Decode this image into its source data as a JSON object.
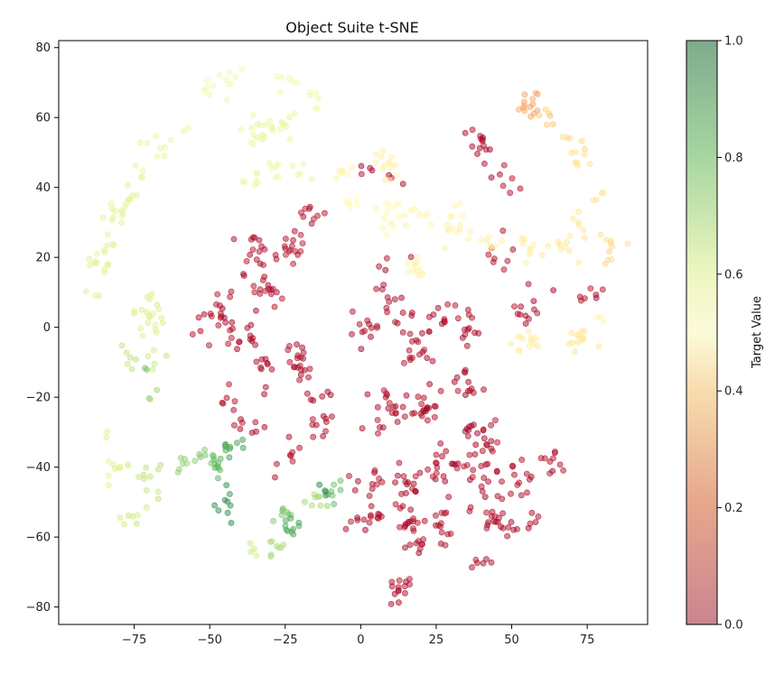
{
  "chart_data": {
    "type": "scatter",
    "title": "Object Suite t-SNE",
    "xlabel": "",
    "ylabel": "",
    "xlim": [
      -100,
      95
    ],
    "ylim": [
      -85,
      82
    ],
    "x_ticks": [
      -75,
      -50,
      -25,
      0,
      25,
      50,
      75
    ],
    "x_tick_labels": [
      "−75",
      "−50",
      "−25",
      "0",
      "25",
      "50",
      "75"
    ],
    "y_ticks": [
      -80,
      -60,
      -40,
      -20,
      0,
      20,
      40,
      60,
      80
    ],
    "y_tick_labels": [
      "−80",
      "−60",
      "−40",
      "−20",
      "0",
      "20",
      "40",
      "60",
      "80"
    ],
    "grid": false,
    "colormap": "RdYlGn",
    "colormap_colors": [
      "#a50026",
      "#f46d43",
      "#fee08b",
      "#ffffbf",
      "#d9ef8b",
      "#66bd63",
      "#006837"
    ],
    "point_alpha": 0.5,
    "colorbar": {
      "label": "Target Value",
      "range": [
        0,
        1
      ],
      "ticks": [
        0.0,
        0.2,
        0.4,
        0.6,
        0.8,
        1.0
      ],
      "tick_labels": [
        "0.0",
        "0.2",
        "0.4",
        "0.6",
        "0.8",
        "1.0"
      ]
    },
    "clusters": [
      {
        "cx": -88,
        "cy": 10,
        "sx": 1.5,
        "sy": 1,
        "n": 3,
        "v": 0.62
      },
      {
        "cx": -86,
        "cy": 19,
        "sx": 2,
        "sy": 2,
        "n": 10,
        "v": 0.62
      },
      {
        "cx": -84,
        "cy": 23,
        "sx": 1.5,
        "sy": 1.5,
        "n": 6,
        "v": 0.63
      },
      {
        "cx": -81,
        "cy": 32,
        "sx": 2,
        "sy": 2,
        "n": 10,
        "v": 0.62
      },
      {
        "cx": -78,
        "cy": 37,
        "sx": 2,
        "sy": 2,
        "n": 8,
        "v": 0.62
      },
      {
        "cx": -73,
        "cy": 45,
        "sx": 1.5,
        "sy": 1.5,
        "n": 4,
        "v": 0.6
      },
      {
        "cx": -66,
        "cy": 52,
        "sx": 2,
        "sy": 2,
        "n": 8,
        "v": 0.59
      },
      {
        "cx": -58,
        "cy": 57,
        "sx": 1,
        "sy": 1,
        "n": 2,
        "v": 0.58
      },
      {
        "cx": -50,
        "cy": 67,
        "sx": 2.5,
        "sy": 2,
        "n": 6,
        "v": 0.55
      },
      {
        "cx": -43,
        "cy": 71,
        "sx": 2,
        "sy": 2,
        "n": 7,
        "v": 0.55
      },
      {
        "cx": -25,
        "cy": 71,
        "sx": 2,
        "sy": 2,
        "n": 6,
        "v": 0.55
      },
      {
        "cx": -15,
        "cy": 66,
        "sx": 2.5,
        "sy": 3,
        "n": 6,
        "v": 0.56
      },
      {
        "cx": -32,
        "cy": 57,
        "sx": 3,
        "sy": 2,
        "n": 15,
        "v": 0.59
      },
      {
        "cx": -26,
        "cy": 58,
        "sx": 2,
        "sy": 2,
        "n": 8,
        "v": 0.59
      },
      {
        "cx": -38,
        "cy": 54,
        "sx": 1.5,
        "sy": 1.5,
        "n": 3,
        "v": 0.58
      },
      {
        "cx": -37,
        "cy": 42,
        "sx": 2,
        "sy": 1.5,
        "n": 6,
        "v": 0.58
      },
      {
        "cx": -29,
        "cy": 45,
        "sx": 2,
        "sy": 1.5,
        "n": 8,
        "v": 0.58
      },
      {
        "cx": -20,
        "cy": 44,
        "sx": 1.5,
        "sy": 1,
        "n": 4,
        "v": 0.57
      },
      {
        "cx": -80,
        "cy": -40,
        "sx": 3,
        "sy": 2,
        "n": 10,
        "v": 0.63
      },
      {
        "cx": -83,
        "cy": -30,
        "sx": 1,
        "sy": 1,
        "n": 2,
        "v": 0.64
      },
      {
        "cx": -70,
        "cy": -42,
        "sx": 2.5,
        "sy": 2.5,
        "n": 10,
        "v": 0.7
      },
      {
        "cx": -76,
        "cy": -53,
        "sx": 3,
        "sy": 3,
        "n": 7,
        "v": 0.68
      },
      {
        "cx": -58,
        "cy": -39,
        "sx": 2,
        "sy": 1.5,
        "n": 7,
        "v": 0.76
      },
      {
        "cx": -51,
        "cy": -37,
        "sx": 2,
        "sy": 2,
        "n": 7,
        "v": 0.8
      },
      {
        "cx": -42,
        "cy": -34,
        "sx": 2,
        "sy": 1.5,
        "n": 10,
        "v": 0.88
      },
      {
        "cx": -46,
        "cy": -40,
        "sx": 2,
        "sy": 2,
        "n": 9,
        "v": 0.85
      },
      {
        "cx": -45,
        "cy": -51,
        "sx": 1.5,
        "sy": 2,
        "n": 9,
        "v": 0.92
      },
      {
        "cx": -26,
        "cy": -52,
        "sx": 2,
        "sy": 1.5,
        "n": 8,
        "v": 0.8
      },
      {
        "cx": -22,
        "cy": -57,
        "sx": 2,
        "sy": 2,
        "n": 10,
        "v": 0.87
      },
      {
        "cx": -28,
        "cy": -63,
        "sx": 2,
        "sy": 2,
        "n": 8,
        "v": 0.73
      },
      {
        "cx": -35,
        "cy": -64,
        "sx": 1.5,
        "sy": 1,
        "n": 4,
        "v": 0.68
      },
      {
        "cx": -15,
        "cy": -50,
        "sx": 2,
        "sy": 1.5,
        "n": 8,
        "v": 0.74
      },
      {
        "cx": -8,
        "cy": -47,
        "sx": 1.5,
        "sy": 1.5,
        "n": 7,
        "v": 0.83
      },
      {
        "cx": -12,
        "cy": -47,
        "sx": 1.5,
        "sy": 2,
        "n": 4,
        "v": 0.92
      },
      {
        "cx": -70,
        "cy": 3,
        "sx": 3,
        "sy": 4,
        "n": 20,
        "v": 0.65
      },
      {
        "cx": -76,
        "cy": -8,
        "sx": 2,
        "sy": 3,
        "n": 6,
        "v": 0.7
      },
      {
        "cx": -68,
        "cy": -9,
        "sx": 1.5,
        "sy": 2,
        "n": 5,
        "v": 0.68
      },
      {
        "cx": -72,
        "cy": -12,
        "sx": 1,
        "sy": 1,
        "n": 2,
        "v": 0.8
      },
      {
        "cx": -68,
        "cy": -19,
        "sx": 1.5,
        "sy": 1.5,
        "n": 3,
        "v": 0.75
      },
      {
        "cx": -48,
        "cy": 2,
        "sx": 4,
        "sy": 4,
        "n": 22,
        "v": 0.02
      },
      {
        "cx": -38,
        "cy": -3,
        "sx": 3,
        "sy": 3,
        "n": 12,
        "v": 0.02
      },
      {
        "cx": -35,
        "cy": 21,
        "sx": 3,
        "sy": 4,
        "n": 18,
        "v": 0.02
      },
      {
        "cx": -30,
        "cy": 10,
        "sx": 3,
        "sy": 3,
        "n": 15,
        "v": 0.02
      },
      {
        "cx": -24,
        "cy": 22,
        "sx": 3,
        "sy": 3,
        "n": 15,
        "v": 0.03
      },
      {
        "cx": -17,
        "cy": 33,
        "sx": 3,
        "sy": 3,
        "n": 10,
        "v": 0.03
      },
      {
        "cx": -20,
        "cy": -8,
        "sx": 2,
        "sy": 3,
        "n": 20,
        "v": 0.02
      },
      {
        "cx": -32,
        "cy": -13,
        "sx": 2.5,
        "sy": 2.5,
        "n": 10,
        "v": 0.02
      },
      {
        "cx": -44,
        "cy": -19,
        "sx": 2,
        "sy": 2,
        "n": 6,
        "v": 0.02
      },
      {
        "cx": -38,
        "cy": -27,
        "sx": 3,
        "sy": 2,
        "n": 8,
        "v": 0.02
      },
      {
        "cx": -16,
        "cy": -20,
        "sx": 2,
        "sy": 1.5,
        "n": 6,
        "v": 0.02
      },
      {
        "cx": -13,
        "cy": -28,
        "sx": 2,
        "sy": 2,
        "n": 10,
        "v": 0.02
      },
      {
        "cx": -25,
        "cy": -38,
        "sx": 3,
        "sy": 3,
        "n": 8,
        "v": 0.02
      },
      {
        "cx": 2,
        "cy": 0,
        "sx": 3,
        "sy": 3,
        "n": 12,
        "v": 0.02
      },
      {
        "cx": 12,
        "cy": 5,
        "sx": 3,
        "sy": 3,
        "n": 10,
        "v": 0.02
      },
      {
        "cx": 8,
        "cy": 16,
        "sx": 3,
        "sy": 4,
        "n": 8,
        "v": 0.02
      },
      {
        "cx": 20,
        "cy": -7,
        "sx": 3,
        "sy": 3,
        "n": 18,
        "v": 0.02
      },
      {
        "cx": 28,
        "cy": 4,
        "sx": 3,
        "sy": 3,
        "n": 10,
        "v": 0.02
      },
      {
        "cx": 36,
        "cy": 0,
        "sx": 2,
        "sy": 2,
        "n": 10,
        "v": 0.02
      },
      {
        "cx": 8,
        "cy": -25,
        "sx": 4,
        "sy": 5,
        "n": 20,
        "v": 0.02
      },
      {
        "cx": 22,
        "cy": -22,
        "sx": 3,
        "sy": 3,
        "n": 22,
        "v": 0.02
      },
      {
        "cx": 36,
        "cy": -17,
        "sx": 3,
        "sy": 3,
        "n": 14,
        "v": 0.02
      },
      {
        "cx": 40,
        "cy": -31,
        "sx": 3,
        "sy": 3,
        "n": 22,
        "v": 0.02
      },
      {
        "cx": 3,
        "cy": -45,
        "sx": 3,
        "sy": 3,
        "n": 12,
        "v": 0.02
      },
      {
        "cx": 15,
        "cy": -44,
        "sx": 4,
        "sy": 3,
        "n": 15,
        "v": 0.02
      },
      {
        "cx": 28,
        "cy": -40,
        "sx": 3,
        "sy": 3,
        "n": 20,
        "v": 0.02
      },
      {
        "cx": 40,
        "cy": -42,
        "sx": 3,
        "sy": 3,
        "n": 14,
        "v": 0.02
      },
      {
        "cx": 52,
        "cy": -43,
        "sx": 3,
        "sy": 3,
        "n": 14,
        "v": 0.02
      },
      {
        "cx": 64,
        "cy": -39,
        "sx": 2,
        "sy": 2,
        "n": 9,
        "v": 0.02
      },
      {
        "cx": 2,
        "cy": -56,
        "sx": 3,
        "sy": 2,
        "n": 14,
        "v": 0.02
      },
      {
        "cx": 15,
        "cy": -56,
        "sx": 3,
        "sy": 3,
        "n": 18,
        "v": 0.02
      },
      {
        "cx": 28,
        "cy": -57,
        "sx": 3,
        "sy": 3,
        "n": 14,
        "v": 0.02
      },
      {
        "cx": 42,
        "cy": -53,
        "sx": 3,
        "sy": 3,
        "n": 14,
        "v": 0.02
      },
      {
        "cx": 48,
        "cy": -57,
        "sx": 3,
        "sy": 2,
        "n": 10,
        "v": 0.02
      },
      {
        "cx": 56,
        "cy": -57,
        "sx": 1.5,
        "sy": 1.5,
        "n": 5,
        "v": 0.02
      },
      {
        "cx": 20,
        "cy": -62,
        "sx": 2,
        "sy": 2,
        "n": 8,
        "v": 0.02
      },
      {
        "cx": 40,
        "cy": -67,
        "sx": 2,
        "sy": 1.5,
        "n": 6,
        "v": 0.02
      },
      {
        "cx": 12,
        "cy": -75,
        "sx": 2,
        "sy": 2,
        "n": 14,
        "v": 0.02
      },
      {
        "cx": 40,
        "cy": 52,
        "sx": 2,
        "sy": 3,
        "n": 14,
        "v": 0.02
      },
      {
        "cx": 47,
        "cy": 41,
        "sx": 2,
        "sy": 2,
        "n": 7,
        "v": 0.02
      },
      {
        "cx": 45,
        "cy": 20,
        "sx": 3,
        "sy": 3,
        "n": 8,
        "v": 0.03
      },
      {
        "cx": 55,
        "cy": 5,
        "sx": 3,
        "sy": 3,
        "n": 12,
        "v": 0.02
      },
      {
        "cx": 75,
        "cy": 9,
        "sx": 2,
        "sy": 2,
        "n": 7,
        "v": 0.02
      },
      {
        "cx": 2,
        "cy": 45,
        "sx": 1.5,
        "sy": 1,
        "n": 4,
        "v": 0.02
      },
      {
        "cx": 12,
        "cy": 42,
        "sx": 1.5,
        "sy": 1.5,
        "n": 3,
        "v": 0.02
      },
      {
        "cx": 56,
        "cy": 64,
        "sx": 2.5,
        "sy": 2.5,
        "n": 14,
        "v": 0.25
      },
      {
        "cx": 62,
        "cy": 60,
        "sx": 2,
        "sy": 2,
        "n": 6,
        "v": 0.3
      },
      {
        "cx": 70,
        "cy": 52,
        "sx": 2,
        "sy": 2,
        "n": 6,
        "v": 0.33
      },
      {
        "cx": 74,
        "cy": 48,
        "sx": 1.5,
        "sy": 1.5,
        "n": 6,
        "v": 0.36
      },
      {
        "cx": 77,
        "cy": 38,
        "sx": 1.5,
        "sy": 2,
        "n": 4,
        "v": 0.36
      },
      {
        "cx": 73,
        "cy": 31,
        "sx": 2,
        "sy": 2,
        "n": 6,
        "v": 0.38
      },
      {
        "cx": 84,
        "cy": 25,
        "sx": 2,
        "sy": 2,
        "n": 6,
        "v": 0.34
      },
      {
        "cx": 82,
        "cy": 20,
        "sx": 1.5,
        "sy": 1.5,
        "n": 4,
        "v": 0.33
      },
      {
        "cx": 67,
        "cy": 23,
        "sx": 3,
        "sy": 2,
        "n": 10,
        "v": 0.38
      },
      {
        "cx": 55,
        "cy": 23,
        "sx": 3,
        "sy": 2,
        "n": 10,
        "v": 0.42
      },
      {
        "cx": 42,
        "cy": 24,
        "sx": 3,
        "sy": 2,
        "n": 8,
        "v": 0.43
      },
      {
        "cx": 30,
        "cy": 30,
        "sx": 3,
        "sy": 3,
        "n": 14,
        "v": 0.44
      },
      {
        "cx": 19,
        "cy": 32,
        "sx": 3,
        "sy": 2,
        "n": 10,
        "v": 0.45
      },
      {
        "cx": 8,
        "cy": 31,
        "sx": 3,
        "sy": 3,
        "n": 12,
        "v": 0.47
      },
      {
        "cx": -3,
        "cy": 36,
        "sx": 2,
        "sy": 2,
        "n": 6,
        "v": 0.48
      },
      {
        "cx": 9,
        "cy": 49,
        "sx": 2,
        "sy": 1.5,
        "n": 8,
        "v": 0.42
      },
      {
        "cx": 10,
        "cy": 44,
        "sx": 2,
        "sy": 1.5,
        "n": 6,
        "v": 0.43
      },
      {
        "cx": -4,
        "cy": 45,
        "sx": 2,
        "sy": 1.5,
        "n": 8,
        "v": 0.45
      },
      {
        "cx": 19,
        "cy": 17,
        "sx": 2,
        "sy": 1.5,
        "n": 12,
        "v": 0.44
      },
      {
        "cx": 55,
        "cy": -4,
        "sx": 3,
        "sy": 2,
        "n": 14,
        "v": 0.42
      },
      {
        "cx": 73,
        "cy": -4,
        "sx": 2,
        "sy": 2,
        "n": 14,
        "v": 0.38
      },
      {
        "cx": 78,
        "cy": 2,
        "sx": 1.5,
        "sy": 1.5,
        "n": 3,
        "v": 0.45
      }
    ]
  }
}
